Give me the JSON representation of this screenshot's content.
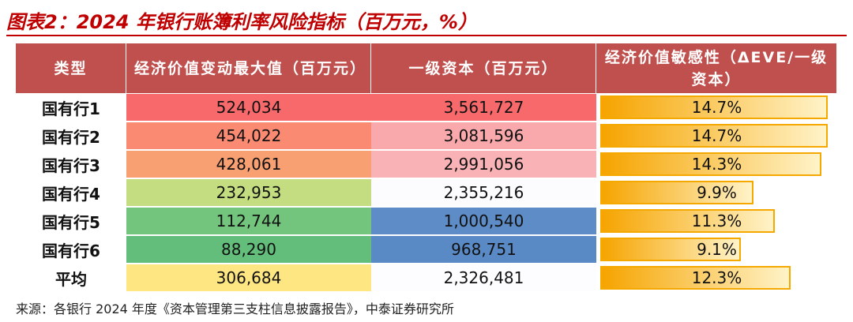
{
  "title": "图表2：2024 年银行账簿利率风险指标（百万元，%）",
  "table": {
    "headers": [
      "类型",
      "经济价值变动最大值（百万元）",
      "一级资本（百万元）",
      "经济价值敏感性（ΔEVE/一级资本）"
    ],
    "rows": [
      {
        "name": "国有行1",
        "eve": "524,034",
        "eve_color": "#f8696b",
        "capital": "3,561,727",
        "capital_color": "#f8696b",
        "ratio": 14.7,
        "ratio_label": "14.7%"
      },
      {
        "name": "国有行2",
        "eve": "454,022",
        "eve_color": "#fa8a72",
        "capital": "3,081,596",
        "capital_color": "#f9a9ac",
        "ratio": 14.7,
        "ratio_label": "14.7%"
      },
      {
        "name": "国有行3",
        "eve": "428,061",
        "eve_color": "#f9a073",
        "capital": "2,991,056",
        "capital_color": "#f9b2b5",
        "ratio": 14.3,
        "ratio_label": "14.3%"
      },
      {
        "name": "国有行4",
        "eve": "232,953",
        "eve_color": "#c4dd80",
        "capital": "2,355,216",
        "capital_color": "#fcfcff",
        "ratio": 9.9,
        "ratio_label": "9.9%"
      },
      {
        "name": "国有行5",
        "eve": "112,744",
        "eve_color": "#73c47d",
        "capital": "1,000,540",
        "capital_color": "#5d8cc7",
        "ratio": 11.3,
        "ratio_label": "11.3%"
      },
      {
        "name": "国有行6",
        "eve": "88,290",
        "eve_color": "#63be7b",
        "capital": "968,751",
        "capital_color": "#5a8ac6",
        "ratio": 9.1,
        "ratio_label": "9.1%"
      },
      {
        "name": "平均",
        "eve": "306,684",
        "eve_color": "#fee683",
        "capital": "2,326,481",
        "capital_color": "#fdfdff",
        "ratio": 12.3,
        "ratio_label": "12.3%"
      }
    ]
  },
  "footer": "来源：各银行 2024 年度《资本管理第三支柱信息披露报告》，中泰证券研究所"
}
